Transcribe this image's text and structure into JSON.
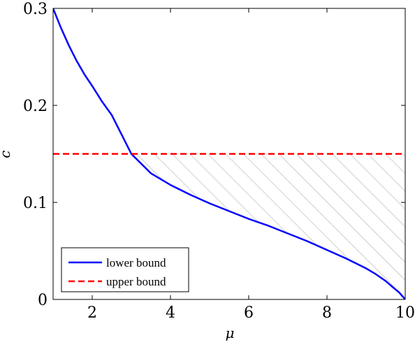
{
  "chart_data": {
    "type": "line",
    "xlabel": "μ",
    "ylabel": "c",
    "xlim": [
      1,
      10
    ],
    "ylim": [
      0,
      0.3
    ],
    "x_ticks": [
      2,
      4,
      6,
      8,
      10
    ],
    "x_tick_labels": [
      "2",
      "4",
      "6",
      "8",
      "10"
    ],
    "y_ticks": [
      0,
      0.1,
      0.2,
      0.3
    ],
    "y_tick_labels": [
      "0",
      "0.1",
      "0.2",
      "0.3"
    ],
    "grid": false,
    "legend_position": "bottom-left",
    "series": [
      {
        "name": "lower bound",
        "style": "solid",
        "color": "#0000ff",
        "x": [
          1.0,
          1.2,
          1.4,
          1.6,
          1.8,
          2.0,
          2.25,
          2.5,
          2.75,
          3.0,
          3.25,
          3.5,
          4.0,
          4.5,
          5.0,
          5.5,
          6.0,
          6.5,
          7.0,
          7.5,
          8.0,
          8.5,
          9.0,
          9.25,
          9.5,
          9.7,
          9.85,
          10.0
        ],
        "y": [
          0.3,
          0.28,
          0.262,
          0.246,
          0.232,
          0.22,
          0.204,
          0.19,
          0.17,
          0.15,
          0.14,
          0.13,
          0.118,
          0.108,
          0.099,
          0.091,
          0.083,
          0.076,
          0.068,
          0.06,
          0.051,
          0.042,
          0.032,
          0.026,
          0.019,
          0.012,
          0.007,
          0.0
        ]
      },
      {
        "name": "upper bound",
        "style": "dashed",
        "color": "#ff0000",
        "x": [
          1,
          10
        ],
        "y": [
          0.15,
          0.15
        ]
      }
    ],
    "hatched_region": {
      "between": [
        "lower bound",
        "upper bound"
      ],
      "x_from": 3.0,
      "x_to": 10
    }
  }
}
